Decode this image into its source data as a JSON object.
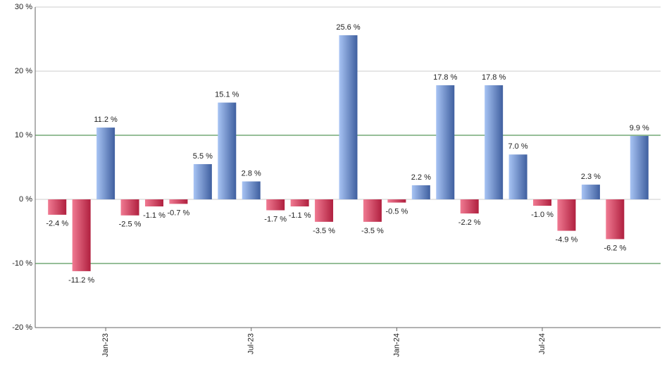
{
  "chart_data": {
    "type": "bar",
    "categories": [
      null,
      null,
      "Jan-23",
      null,
      null,
      null,
      null,
      null,
      "Jul-23",
      null,
      null,
      null,
      null,
      null,
      "Jan-24",
      null,
      null,
      null,
      null,
      null,
      "Jul-24",
      null,
      null,
      null,
      null
    ],
    "values": [
      -2.4,
      -11.2,
      11.2,
      -2.5,
      -1.1,
      -0.7,
      5.5,
      15.1,
      2.8,
      -1.7,
      -1.1,
      -3.5,
      25.6,
      -3.5,
      -0.5,
      2.2,
      17.8,
      -2.2,
      17.8,
      7.0,
      -1.0,
      -4.9,
      2.3,
      -6.2,
      9.9
    ],
    "value_labels": [
      "-2.4 %",
      "-11.2 %",
      "11.2 %",
      "-2.5 %",
      "-1.1 %",
      "-0.7 %",
      "5.5 %",
      "15.1 %",
      "2.8 %",
      "-1.7 %",
      "-1.1 %",
      "-3.5 %",
      "25.6 %",
      "-3.5 %",
      "-0.5 %",
      "2.2 %",
      "17.8 %",
      "-2.2 %",
      "17.8 %",
      "7.0 %",
      "-1.0 %",
      "-4.9 %",
      "2.3 %",
      "-6.2 %",
      "9.9 %"
    ],
    "positive_color": "#3f5f9f",
    "negative_color": "#b0203f",
    "ylim": [
      -20,
      30
    ],
    "yticks": [
      {
        "value": -20,
        "label": "-20 %"
      },
      {
        "value": -10,
        "label": "-10 %"
      },
      {
        "value": 0,
        "label": "0 %"
      },
      {
        "value": 10,
        "label": "10 %"
      },
      {
        "value": 20,
        "label": "20 %"
      },
      {
        "value": 30,
        "label": "30 %"
      }
    ],
    "grid": true,
    "grid_color": "#cccccc",
    "reference_lines": [
      {
        "value": 10,
        "color": "#2e7d32"
      },
      {
        "value": -10,
        "color": "#2e7d32"
      }
    ]
  }
}
